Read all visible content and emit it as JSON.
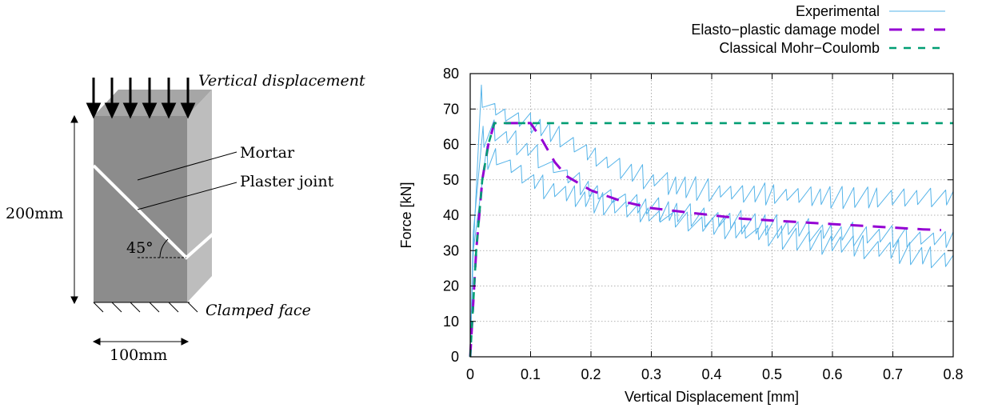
{
  "figure": {
    "specimen": {
      "load_label": "Vertical displacement",
      "mortar_label": "Mortar",
      "joint_label": "Plaster joint",
      "height_label": "200mm",
      "width_label": "100mm",
      "angle_label": "45°",
      "clamped_label": "Clamped face",
      "colors": {
        "front": "#8c8c8c",
        "side": "#bdbdbd",
        "top": "#a6a6a6",
        "joint": "#ffffff"
      }
    }
  },
  "chart_data": {
    "type": "line",
    "title": "",
    "xlabel": "Vertical Displacement [mm]",
    "ylabel": "Force [kN]",
    "xlim": [
      0,
      0.8
    ],
    "ylim": [
      0,
      80
    ],
    "xticks": [
      "0",
      "0.1",
      "0.2",
      "0.3",
      "0.4",
      "0.5",
      "0.6",
      "0.7",
      "0.8"
    ],
    "yticks": [
      "0",
      "10",
      "20",
      "30",
      "40",
      "50",
      "60",
      "70",
      "80"
    ],
    "grid": true,
    "legend_position": "top-right, outside plot",
    "series": [
      {
        "name": "Experimental",
        "style": "solid-thin",
        "color": "#56b4e9",
        "branches": [
          {
            "x": [
              0.005,
              0.01,
              0.015,
              0.02,
              0.025,
              0.035,
              0.05,
              0.08,
              0.12,
              0.2,
              0.3,
              0.4,
              0.5,
              0.6,
              0.7,
              0.8
            ],
            "y": [
              30,
              50,
              60,
              58,
              56,
              57,
              56,
              52,
              48,
              44,
              40,
              37,
              34,
              32,
              30,
              27
            ]
          },
          {
            "x": [
              0.005,
              0.01,
              0.015,
              0.02,
              0.03,
              0.04,
              0.06,
              0.08,
              0.1,
              0.15,
              0.2,
              0.25,
              0.3,
              0.35,
              0.4,
              0.45,
              0.5,
              0.6,
              0.7,
              0.8
            ],
            "y": [
              30,
              65,
              75,
              73,
              72,
              70,
              68,
              67,
              66,
              62,
              57,
              53,
              50,
              48,
              47,
              46,
              46,
              45,
              45,
              45
            ]
          },
          {
            "x": [
              0.005,
              0.01,
              0.02,
              0.04,
              0.06,
              0.1,
              0.15,
              0.2,
              0.3,
              0.4,
              0.5,
              0.6,
              0.7,
              0.8
            ],
            "y": [
              35,
              55,
              62,
              64,
              62,
              58,
              52,
              47,
              42,
              39,
              37,
              35,
              34,
              33
            ]
          }
        ]
      },
      {
        "name": "Elasto-plastic damage model",
        "style": "long-dash",
        "color": "#9400d3",
        "x": [
          0,
          0.01,
          0.02,
          0.03,
          0.04,
          0.06,
          0.08,
          0.1,
          0.12,
          0.14,
          0.16,
          0.2,
          0.25,
          0.3,
          0.35,
          0.4,
          0.45,
          0.5,
          0.55,
          0.6,
          0.65,
          0.7,
          0.75,
          0.78
        ],
        "y": [
          0,
          30,
          50,
          60,
          66,
          66,
          66,
          66,
          61,
          55,
          51,
          47,
          44,
          42,
          41,
          40,
          39,
          38.5,
          38,
          37.5,
          37,
          36.5,
          36,
          35.8
        ]
      },
      {
        "name": "Classical Mohr-Coulomb",
        "style": "short-dash",
        "color": "#009e73",
        "x": [
          0,
          0.01,
          0.02,
          0.03,
          0.04,
          0.8
        ],
        "y": [
          0,
          30,
          50,
          60,
          66,
          66
        ]
      }
    ],
    "legend": [
      {
        "label": "Experimental",
        "style": "solid-thin",
        "color": "#56b4e9"
      },
      {
        "label": "Elasto−plastic damage model",
        "style": "long-dash",
        "color": "#9400d3"
      },
      {
        "label": "Classical Mohr−Coulomb",
        "style": "short-dash",
        "color": "#009e73"
      }
    ]
  }
}
